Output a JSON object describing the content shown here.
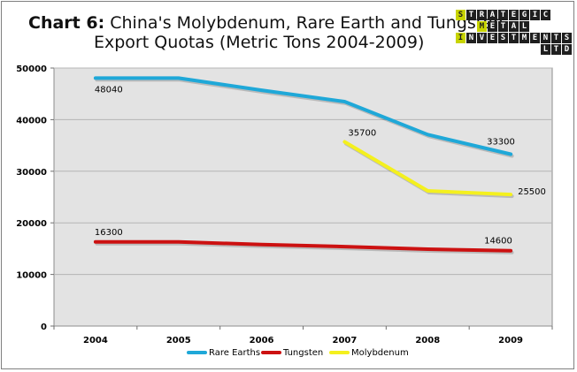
{
  "title": {
    "prefix": "Chart 6:",
    "line1_rest": " China's Molybdenum, Rare Earth and Tungsten",
    "line2": "Export Quotas (Metric Tons 2004-2009)"
  },
  "logo": {
    "rows": [
      "STRATEGIC",
      "METAL",
      "INVESTMENTS",
      "LTD"
    ]
  },
  "chart_data": {
    "type": "line",
    "title": "China's Molybdenum, Rare Earth and Tungsten Export Quotas (Metric Tons 2004-2009)",
    "xlabel": "",
    "ylabel": "",
    "categories": [
      "2004",
      "2005",
      "2006",
      "2007",
      "2008",
      "2009"
    ],
    "ylim": [
      0,
      50000
    ],
    "yticks": [
      0,
      10000,
      20000,
      30000,
      40000,
      50000
    ],
    "grid": true,
    "legend": "bottom",
    "series": [
      {
        "name": "Rare Earths",
        "color": "#1fa8d8",
        "values": [
          48040,
          48040,
          45700,
          43500,
          37100,
          33300
        ]
      },
      {
        "name": "Tungsten",
        "color": "#cc1111",
        "values": [
          16300,
          16300,
          15800,
          15400,
          14900,
          14600
        ]
      },
      {
        "name": "Molybdenum",
        "color": "#f4f01e",
        "values": [
          null,
          null,
          null,
          35700,
          26200,
          25500
        ]
      }
    ],
    "data_labels": [
      {
        "series": 0,
        "index": 0,
        "text": "48040"
      },
      {
        "series": 0,
        "index": 5,
        "text": "33300"
      },
      {
        "series": 1,
        "index": 0,
        "text": "16300"
      },
      {
        "series": 1,
        "index": 5,
        "text": "14600"
      },
      {
        "series": 2,
        "index": 3,
        "text": "35700"
      },
      {
        "series": 2,
        "index": 5,
        "text": "25500"
      }
    ]
  }
}
